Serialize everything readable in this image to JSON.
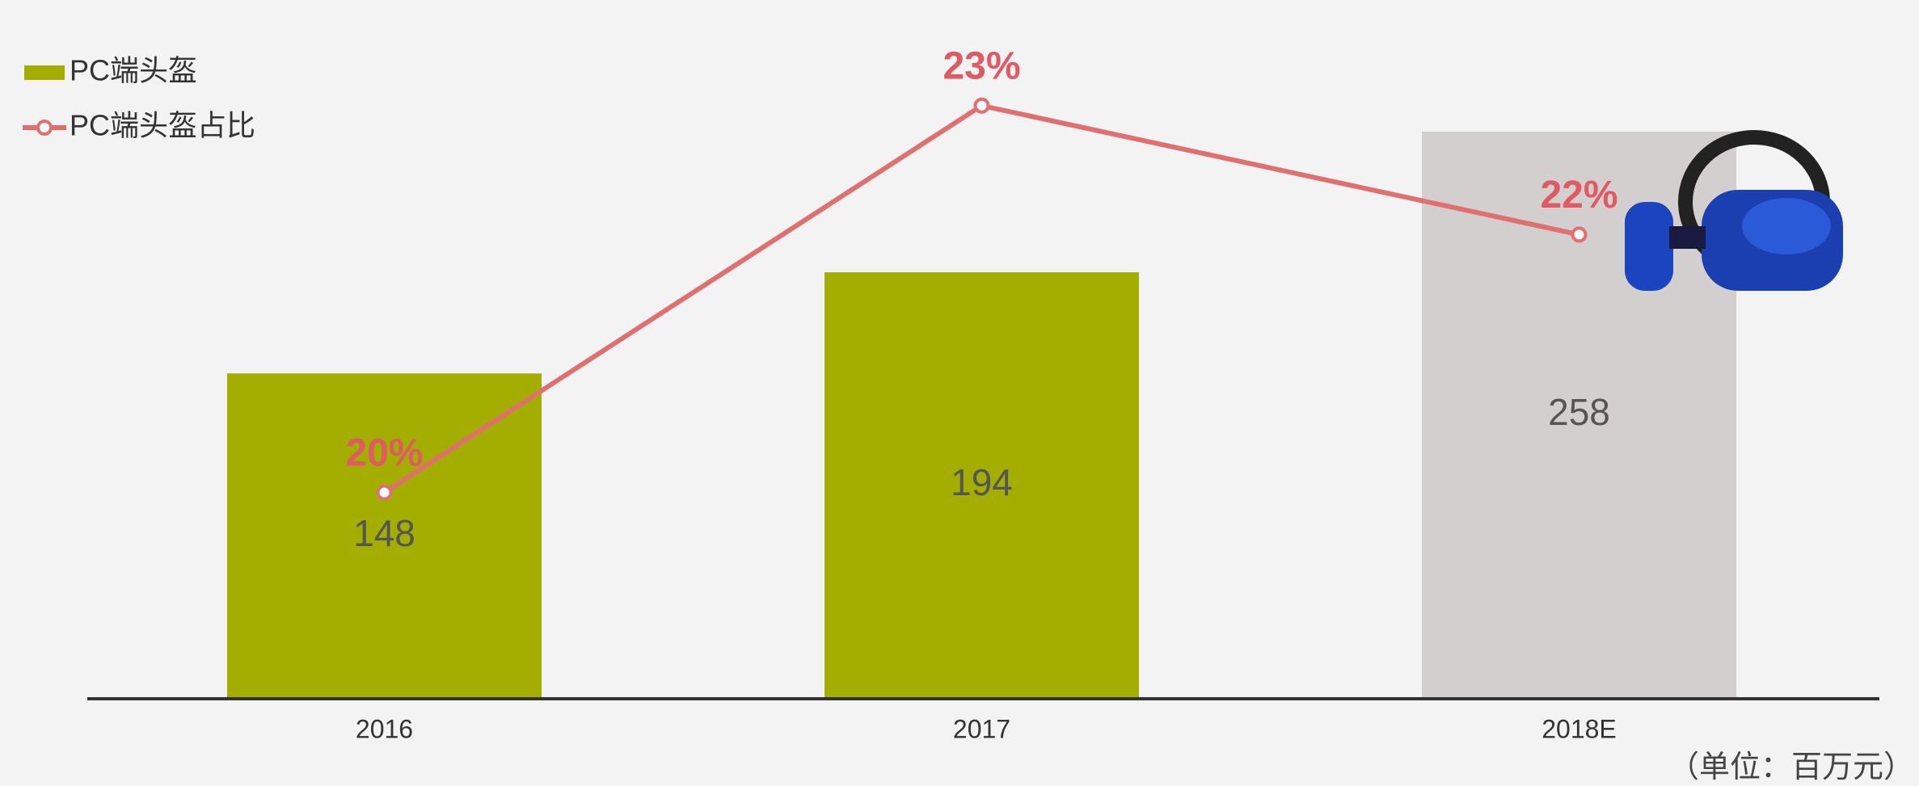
{
  "chart_data": {
    "type": "bar-line",
    "categories": [
      "2016",
      "2017",
      "2018E"
    ],
    "series": [
      {
        "name": "PC端头盔",
        "type": "bar",
        "color": "#a3ae00",
        "bar_colors": [
          "#a3ae00",
          "#a3ae00",
          "#d3cfce"
        ],
        "values": [
          148,
          194,
          258
        ]
      },
      {
        "name": "PC端头盔占比",
        "type": "line",
        "axis": "y2",
        "color": "#e07070",
        "values": [
          20,
          23,
          22
        ],
        "value_labels": [
          "20%",
          "23%",
          "22%"
        ]
      }
    ],
    "ylim": [
      0,
      305
    ],
    "y2lim": [
      18.4,
      23.6
    ],
    "legend": "top-left",
    "unit_note": "（单位：百万元）"
  }
}
